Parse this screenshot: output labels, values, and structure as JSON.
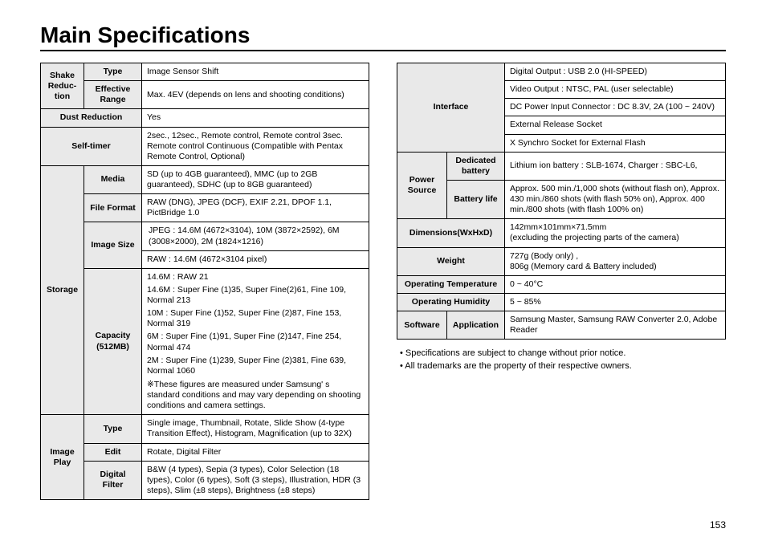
{
  "title": "Main Specifications",
  "page_number": "153",
  "left": {
    "shake": {
      "group": "Shake Reduc-tion",
      "type_label": "Type",
      "type_value": "Image Sensor Shift",
      "range_label": "Effective Range",
      "range_value": "Max. 4EV (depends on lens and shooting conditions)"
    },
    "dust": {
      "label": "Dust Reduction",
      "value": "Yes"
    },
    "selftimer": {
      "label": "Self-timer",
      "value": "2sec., 12sec., Remote control, Remote control 3sec. Remote control Continuous (Compatible with Pentax Remote Control, Optional)"
    },
    "storage": {
      "group": "Storage",
      "media_label": "Media",
      "media_value": "SD (up to 4GB guaranteed), MMC (up to 2GB guaranteed), SDHC (up to 8GB guaranteed)",
      "format_label": "File Format",
      "format_value": "RAW (DNG), JPEG (DCF), EXIF 2.21, DPOF 1.1, PictBridge 1.0",
      "size_label": "Image Size",
      "size_jpeg": "JPEG : 14.6M (4672×3104), 10M (3872×2592), 6M (3008×2000), 2M (1824×1216)",
      "size_raw": "RAW : 14.6M (4672×3104 pixel)",
      "cap_label": "Capacity (512MB)",
      "cap_lines": [
        "14.6M :  RAW 21",
        "14.6M :  Super Fine (1)35, Super Fine(2)61, Fine 109, Normal 213",
        "10M :    Super Fine (1)52, Super Fine (2)87, Fine 153, Normal 319",
        "6M  :    Super Fine (1)91, Super Fine (2)147, Fine 254, Normal 474",
        "2M  :    Super Fine (1)239, Super Fine (2)381, Fine 639, Normal 1060"
      ],
      "cap_note": "※These figures are measured under Samsung' s standard conditions and may vary depending on shooting conditions and camera settings."
    },
    "imageplay": {
      "group": "Image Play",
      "type_label": "Type",
      "type_value": "Single image, Thumbnail, Rotate, Slide Show (4-type Transition Effect), Histogram, Magnification (up to 32X)",
      "edit_label": "Edit",
      "edit_value": "Rotate, Digital Filter",
      "filter_label": "Digital Filter",
      "filter_value": "B&W (4 types), Sepia (3 types), Color Selection (18 types), Color (6 types), Soft (3 steps), Illustration, HDR (3 steps), Slim (±8 steps), Brightness (±8 steps)"
    }
  },
  "right": {
    "interface": {
      "group": "Interface",
      "rows": [
        "Digital Output : USB 2.0 (HI-SPEED)",
        "Video Output : NTSC, PAL (user selectable)",
        "DC Power Input Connector : DC 8.3V, 2A (100 ~ 240V)",
        "External Release Socket",
        "X Synchro Socket for External Flash"
      ]
    },
    "power": {
      "group": "Power Source",
      "batt_label": "Dedicated battery",
      "batt_value": "Lithium ion battery : SLB-1674, Charger : SBC-L6,",
      "life_label": "Battery life",
      "life_value": "Approx. 500 min./1,000 shots (without flash on), Approx. 430 min./860 shots (with flash 50% on), Approx. 400 min./800 shots (with flash 100% on)"
    },
    "dim": {
      "label": "Dimensions(WxHxD)",
      "value": "142mm×101mm×71.5mm\n(excluding the projecting parts of the camera)"
    },
    "weight": {
      "label": "Weight",
      "value": "727g (Body only) ,\n806g (Memory card & Battery included)"
    },
    "optemp": {
      "label": "Operating Temperature",
      "value": "0 ~ 40°C"
    },
    "ophum": {
      "label": "Operating Humidity",
      "value": "5 ~ 85%"
    },
    "software": {
      "group": "Software",
      "app_label": "Application",
      "app_value": "Samsung Master, Samsung RAW Converter 2.0, Adobe Reader"
    }
  },
  "notes": [
    "•  Specifications are subject to change without prior notice.",
    "•  All trademarks are the property of their respective owners."
  ]
}
